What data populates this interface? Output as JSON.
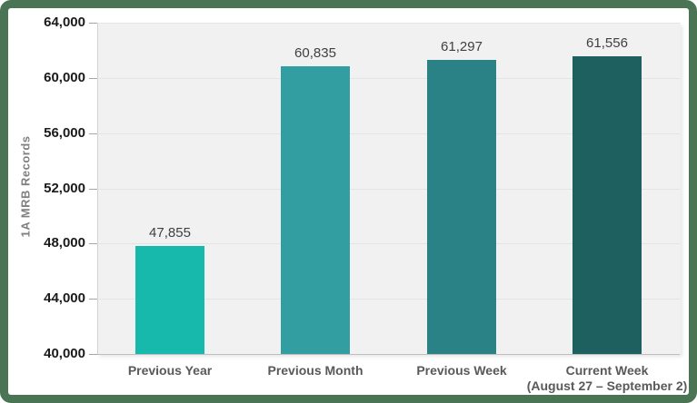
{
  "chart_data": {
    "type": "bar",
    "title": "",
    "xlabel": "",
    "ylabel": "1A MRB Records",
    "categories": [
      {
        "lines": [
          "Previous Year"
        ]
      },
      {
        "lines": [
          "Previous Month"
        ]
      },
      {
        "lines": [
          "Previous Week"
        ]
      },
      {
        "lines": [
          "Current Week",
          "(August 27 – September 2)"
        ]
      }
    ],
    "values": [
      47855,
      60835,
      61297,
      61556
    ],
    "value_labels": [
      "47,855",
      "60,835",
      "61,297",
      "61,556"
    ],
    "bar_colors": [
      "#17B9AD",
      "#339EA1",
      "#2A8186",
      "#1D605F"
    ],
    "ylim": [
      40000,
      64000
    ],
    "ytick_step": 4000,
    "ytick_labels": [
      "40,000",
      "44,000",
      "48,000",
      "52,000",
      "56,000",
      "60,000",
      "64,000"
    ],
    "grid": true,
    "legend": null
  },
  "theme": {
    "frame_border_color": "#4A7453",
    "plot_background": "#F1F1F1",
    "gridline_color": "#E4E4E4",
    "axis_color": "#BFBFBF",
    "tick_label_color": "#1A1A1A",
    "value_label_color": "#404040",
    "category_label_color": "#595959",
    "axis_title_color": "#808080"
  }
}
